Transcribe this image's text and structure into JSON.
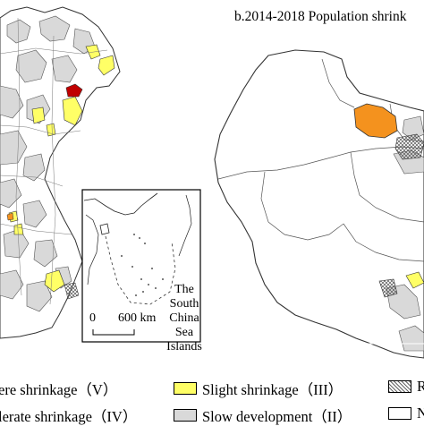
{
  "panel_b_title": "b.2014-2018 Population shrink",
  "inset": {
    "label_lines": [
      "The",
      "South",
      "China",
      "Sea",
      "Islands"
    ],
    "scale_zero": "0",
    "scale_distance": "600 km"
  },
  "legend": {
    "severe": "ere shrinkage（V）",
    "moderate": "lerate shrinkage（IV）",
    "slight": "Slight shrinkage（III）",
    "slow": "Slow development（II）",
    "right_partial_1": "R",
    "right_partial_2": "N"
  },
  "colors": {
    "severe": "#c00000",
    "moderate": "#f4921e",
    "slight": "#ffff66",
    "slow": "#d9d9d9",
    "none": "#ffffff"
  }
}
